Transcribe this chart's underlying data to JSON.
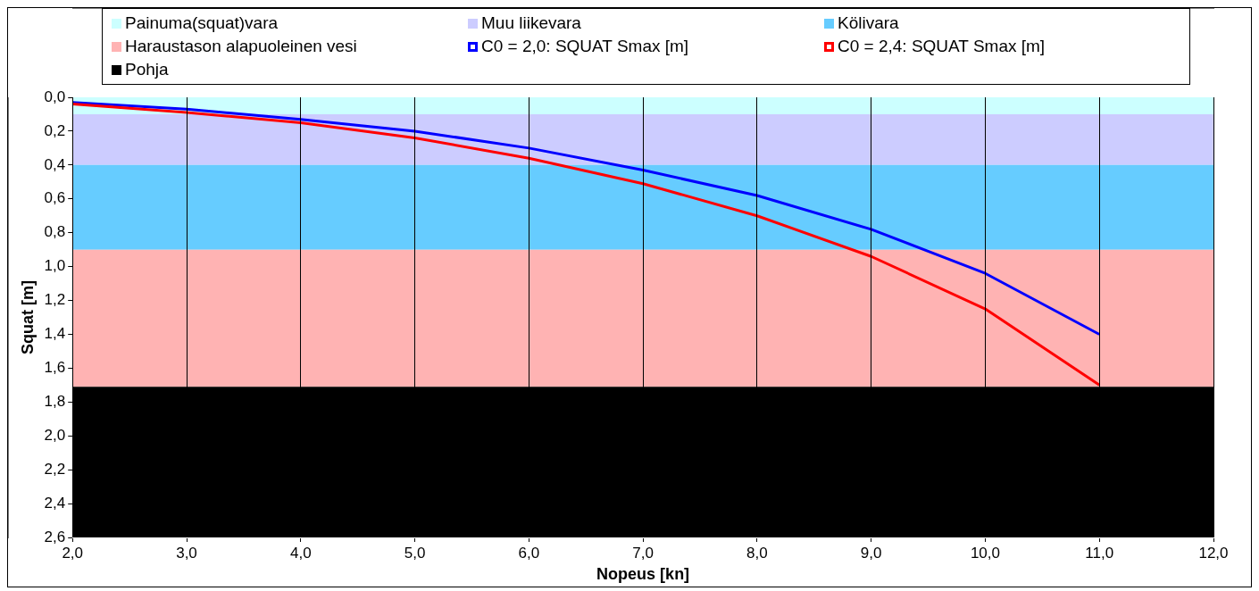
{
  "chart_data": {
    "type": "line",
    "xlabel": "Nopeus [kn]",
    "ylabel": "Squat [m]",
    "x": [
      2,
      3,
      4,
      5,
      6,
      7,
      8,
      9,
      10,
      11,
      12
    ],
    "xlim": [
      2,
      12
    ],
    "xticks": [
      {
        "value": 2,
        "label": "2,0"
      },
      {
        "value": 3,
        "label": "3,0"
      },
      {
        "value": 4,
        "label": "4,0"
      },
      {
        "value": 5,
        "label": "5,0"
      },
      {
        "value": 6,
        "label": "6,0"
      },
      {
        "value": 7,
        "label": "7,0"
      },
      {
        "value": 8,
        "label": "8,0"
      },
      {
        "value": 9,
        "label": "9,0"
      },
      {
        "value": 10,
        "label": "10,0"
      },
      {
        "value": 11,
        "label": "11,0"
      },
      {
        "value": 12,
        "label": "12,0"
      }
    ],
    "ylim": [
      2.6,
      0
    ],
    "yticks": [
      {
        "value": 0,
        "label": "0,0"
      },
      {
        "value": 0.2,
        "label": "0,2"
      },
      {
        "value": 0.4,
        "label": "0,4"
      },
      {
        "value": 0.6,
        "label": "0,6"
      },
      {
        "value": 0.8,
        "label": "0,8"
      },
      {
        "value": 1,
        "label": "1,0"
      },
      {
        "value": 1.2,
        "label": "1,2"
      },
      {
        "value": 1.4,
        "label": "1,4"
      },
      {
        "value": 1.6,
        "label": "1,6"
      },
      {
        "value": 1.8,
        "label": "1,8"
      },
      {
        "value": 2,
        "label": "2,0"
      },
      {
        "value": 2.2,
        "label": "2,2"
      },
      {
        "value": 2.4,
        "label": "2,4"
      },
      {
        "value": 2.6,
        "label": "2,6"
      }
    ],
    "grid": "x",
    "legend": "top",
    "stacked": true,
    "series": [
      {
        "name": "Painuma(squat)vara",
        "type": "area",
        "color": "#ccffff",
        "values": [
          0.1,
          0.1,
          0.1,
          0.1,
          0.1,
          0.1,
          0.1,
          0.1,
          0.1,
          0.1,
          0.1
        ]
      },
      {
        "name": "Muu liikevara",
        "type": "area",
        "color": "#ccccff",
        "values": [
          0.3,
          0.3,
          0.3,
          0.3,
          0.3,
          0.3,
          0.3,
          0.3,
          0.3,
          0.3,
          0.3
        ]
      },
      {
        "name": "Kölivara",
        "type": "area",
        "color": "#66ccff",
        "values": [
          0.5,
          0.5,
          0.5,
          0.5,
          0.5,
          0.5,
          0.5,
          0.5,
          0.5,
          0.5,
          0.5
        ]
      },
      {
        "name": "Haraustason alapuoleinen vesi",
        "type": "area",
        "color": "#ffb3b3",
        "values": [
          0.81,
          0.81,
          0.81,
          0.81,
          0.81,
          0.81,
          0.81,
          0.81,
          0.81,
          0.81,
          0.81
        ]
      },
      {
        "name": "C0 = 2,0: SQUAT Smax [m]",
        "color": "#0000ff",
        "values": [
          0.03,
          0.07,
          0.13,
          0.2,
          0.3,
          0.43,
          0.58,
          0.78,
          1.04,
          1.4,
          null
        ]
      },
      {
        "name": "C0 = 2,4: SQUAT Smax [m]",
        "color": "#ff0000",
        "values": [
          0.04,
          0.09,
          0.15,
          0.24,
          0.36,
          0.51,
          0.7,
          0.94,
          1.25,
          1.7,
          null
        ]
      },
      {
        "name": "Pohja",
        "type": "area",
        "color": "#000000",
        "values": [
          0.89,
          0.89,
          0.89,
          0.89,
          0.89,
          0.89,
          0.89,
          0.89,
          0.89,
          0.89,
          0.89
        ]
      }
    ]
  }
}
